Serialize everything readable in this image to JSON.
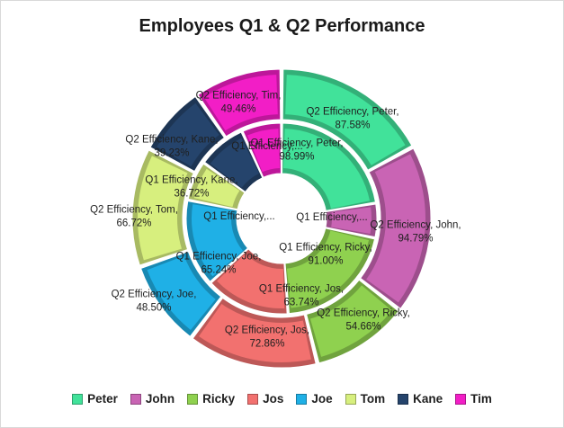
{
  "chart_data": {
    "type": "doughnut",
    "title": "Employees Q1 & Q2 Performance",
    "categories": [
      "Peter",
      "John",
      "Ricky",
      "Jos",
      "Joe",
      "Tom",
      "Kane",
      "Tim"
    ],
    "colors": [
      "#41e29a",
      "#c964b4",
      "#8fd14f",
      "#f2716f",
      "#1fb0e6",
      "#d7ef7e",
      "#25446c",
      "#f21ec6"
    ],
    "series": [
      {
        "name": "Q1 Efficiency",
        "ring": "inner",
        "values": [
          98.99,
          26.0,
          91.0,
          63.74,
          65.24,
          30.0,
          36.72,
          30.0
        ],
        "labels": [
          "Q1 Efficiency, Peter, 98.99%",
          "Q1 Efficiency,...",
          "Q1 Efficiency, Ricky, 91.00%",
          "Q1 Efficiency, Jos, 63.74%",
          "Q1 Efficiency, Joe, 65.24%",
          "Q1 Efficiency,...",
          "Q1 Efficiency, Kane, 36.72%",
          "Q1 Efficiency,..."
        ]
      },
      {
        "name": "Q2 Efficiency",
        "ring": "outer",
        "values": [
          87.58,
          94.79,
          54.66,
          72.86,
          48.5,
          66.72,
          39.23,
          49.46
        ],
        "labels": [
          "Q2 Efficiency, Peter, 87.58%",
          "Q2 Efficiency, John, 94.79%",
          "Q2 Efficiency, Ricky, 54.66%",
          "Q2 Efficiency, Jos, 72.86%",
          "Q2 Efficiency, Joe, 48.50%",
          "Q2 Efficiency, Tom, 66.72%",
          "Q2 Efficiency, Kane, 39.23%",
          "Q2 Efficiency, Tim, 49.46%"
        ]
      }
    ],
    "legend_position": "bottom"
  }
}
